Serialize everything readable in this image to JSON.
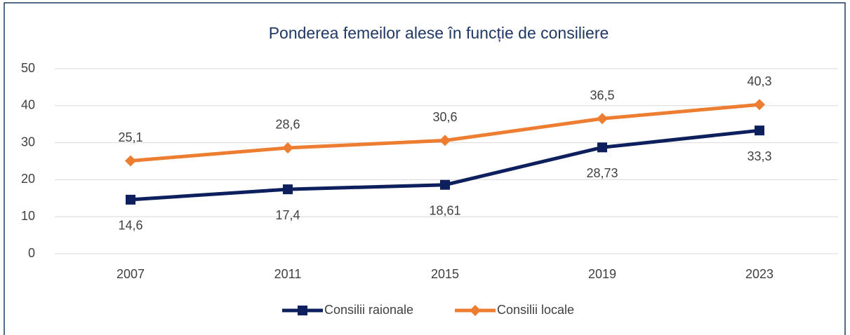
{
  "chart_data": {
    "type": "line",
    "title": "Ponderea femeilor alese în funcție de consiliere",
    "categories": [
      "2007",
      "2011",
      "2015",
      "2019",
      "2023"
    ],
    "series": [
      {
        "name": "Consilii raionale",
        "color": "#0d1f5c",
        "marker": "square",
        "values": [
          14.6,
          17.4,
          18.61,
          28.73,
          33.3
        ],
        "value_labels": [
          "14,6",
          "17,4",
          "18,61",
          "28,73",
          "33,3"
        ]
      },
      {
        "name": "Consilii locale",
        "color": "#ed7d31",
        "marker": "diamond",
        "values": [
          25.1,
          28.6,
          30.6,
          36.5,
          40.3
        ],
        "value_labels": [
          "25,1",
          "28,6",
          "30,6",
          "36,5",
          "40,3"
        ]
      }
    ],
    "ylim": [
      0,
      50
    ],
    "yticks": [
      0,
      10,
      20,
      30,
      40,
      50
    ],
    "grid": true,
    "legend": "bottom"
  }
}
